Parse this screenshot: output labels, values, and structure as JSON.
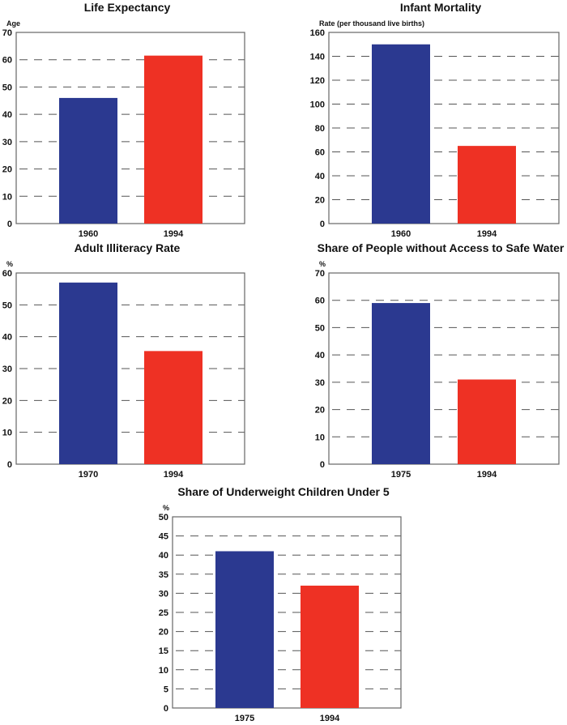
{
  "chart_data": [
    {
      "type": "bar",
      "title": "Life Expectancy",
      "ylabel": "Age",
      "xlabel": "",
      "categories": [
        "1960",
        "1994"
      ],
      "values": [
        46,
        61.5
      ],
      "ylim": [
        0,
        70
      ],
      "ystep": 10,
      "grid": true,
      "colors": [
        "#2b3990",
        "#ee3124"
      ]
    },
    {
      "type": "bar",
      "title": "Infant Mortality",
      "ylabel": "Rate (per thousand live births)",
      "xlabel": "",
      "categories": [
        "1960",
        "1994"
      ],
      "values": [
        150,
        65
      ],
      "ylim": [
        0,
        160
      ],
      "ystep": 20,
      "grid": true,
      "colors": [
        "#2b3990",
        "#ee3124"
      ]
    },
    {
      "type": "bar",
      "title": "Adult Illiteracy Rate",
      "ylabel": "%",
      "xlabel": "",
      "categories": [
        "1970",
        "1994"
      ],
      "values": [
        57,
        35.5
      ],
      "ylim": [
        0,
        60
      ],
      "ystep": 10,
      "grid": true,
      "colors": [
        "#2b3990",
        "#ee3124"
      ]
    },
    {
      "type": "bar",
      "title": "Share of People without Access to Safe Water",
      "ylabel": "%",
      "xlabel": "",
      "categories": [
        "1975",
        "1994"
      ],
      "values": [
        59,
        31
      ],
      "ylim": [
        0,
        70
      ],
      "ystep": 10,
      "grid": true,
      "colors": [
        "#2b3990",
        "#ee3124"
      ]
    },
    {
      "type": "bar",
      "title": "Share of Underweight Children Under 5",
      "ylabel": "%",
      "xlabel": "",
      "categories": [
        "1975",
        "1994"
      ],
      "values": [
        41,
        32
      ],
      "ylim": [
        0,
        50
      ],
      "ystep": 5,
      "grid": true,
      "colors": [
        "#2b3990",
        "#ee3124"
      ]
    }
  ]
}
